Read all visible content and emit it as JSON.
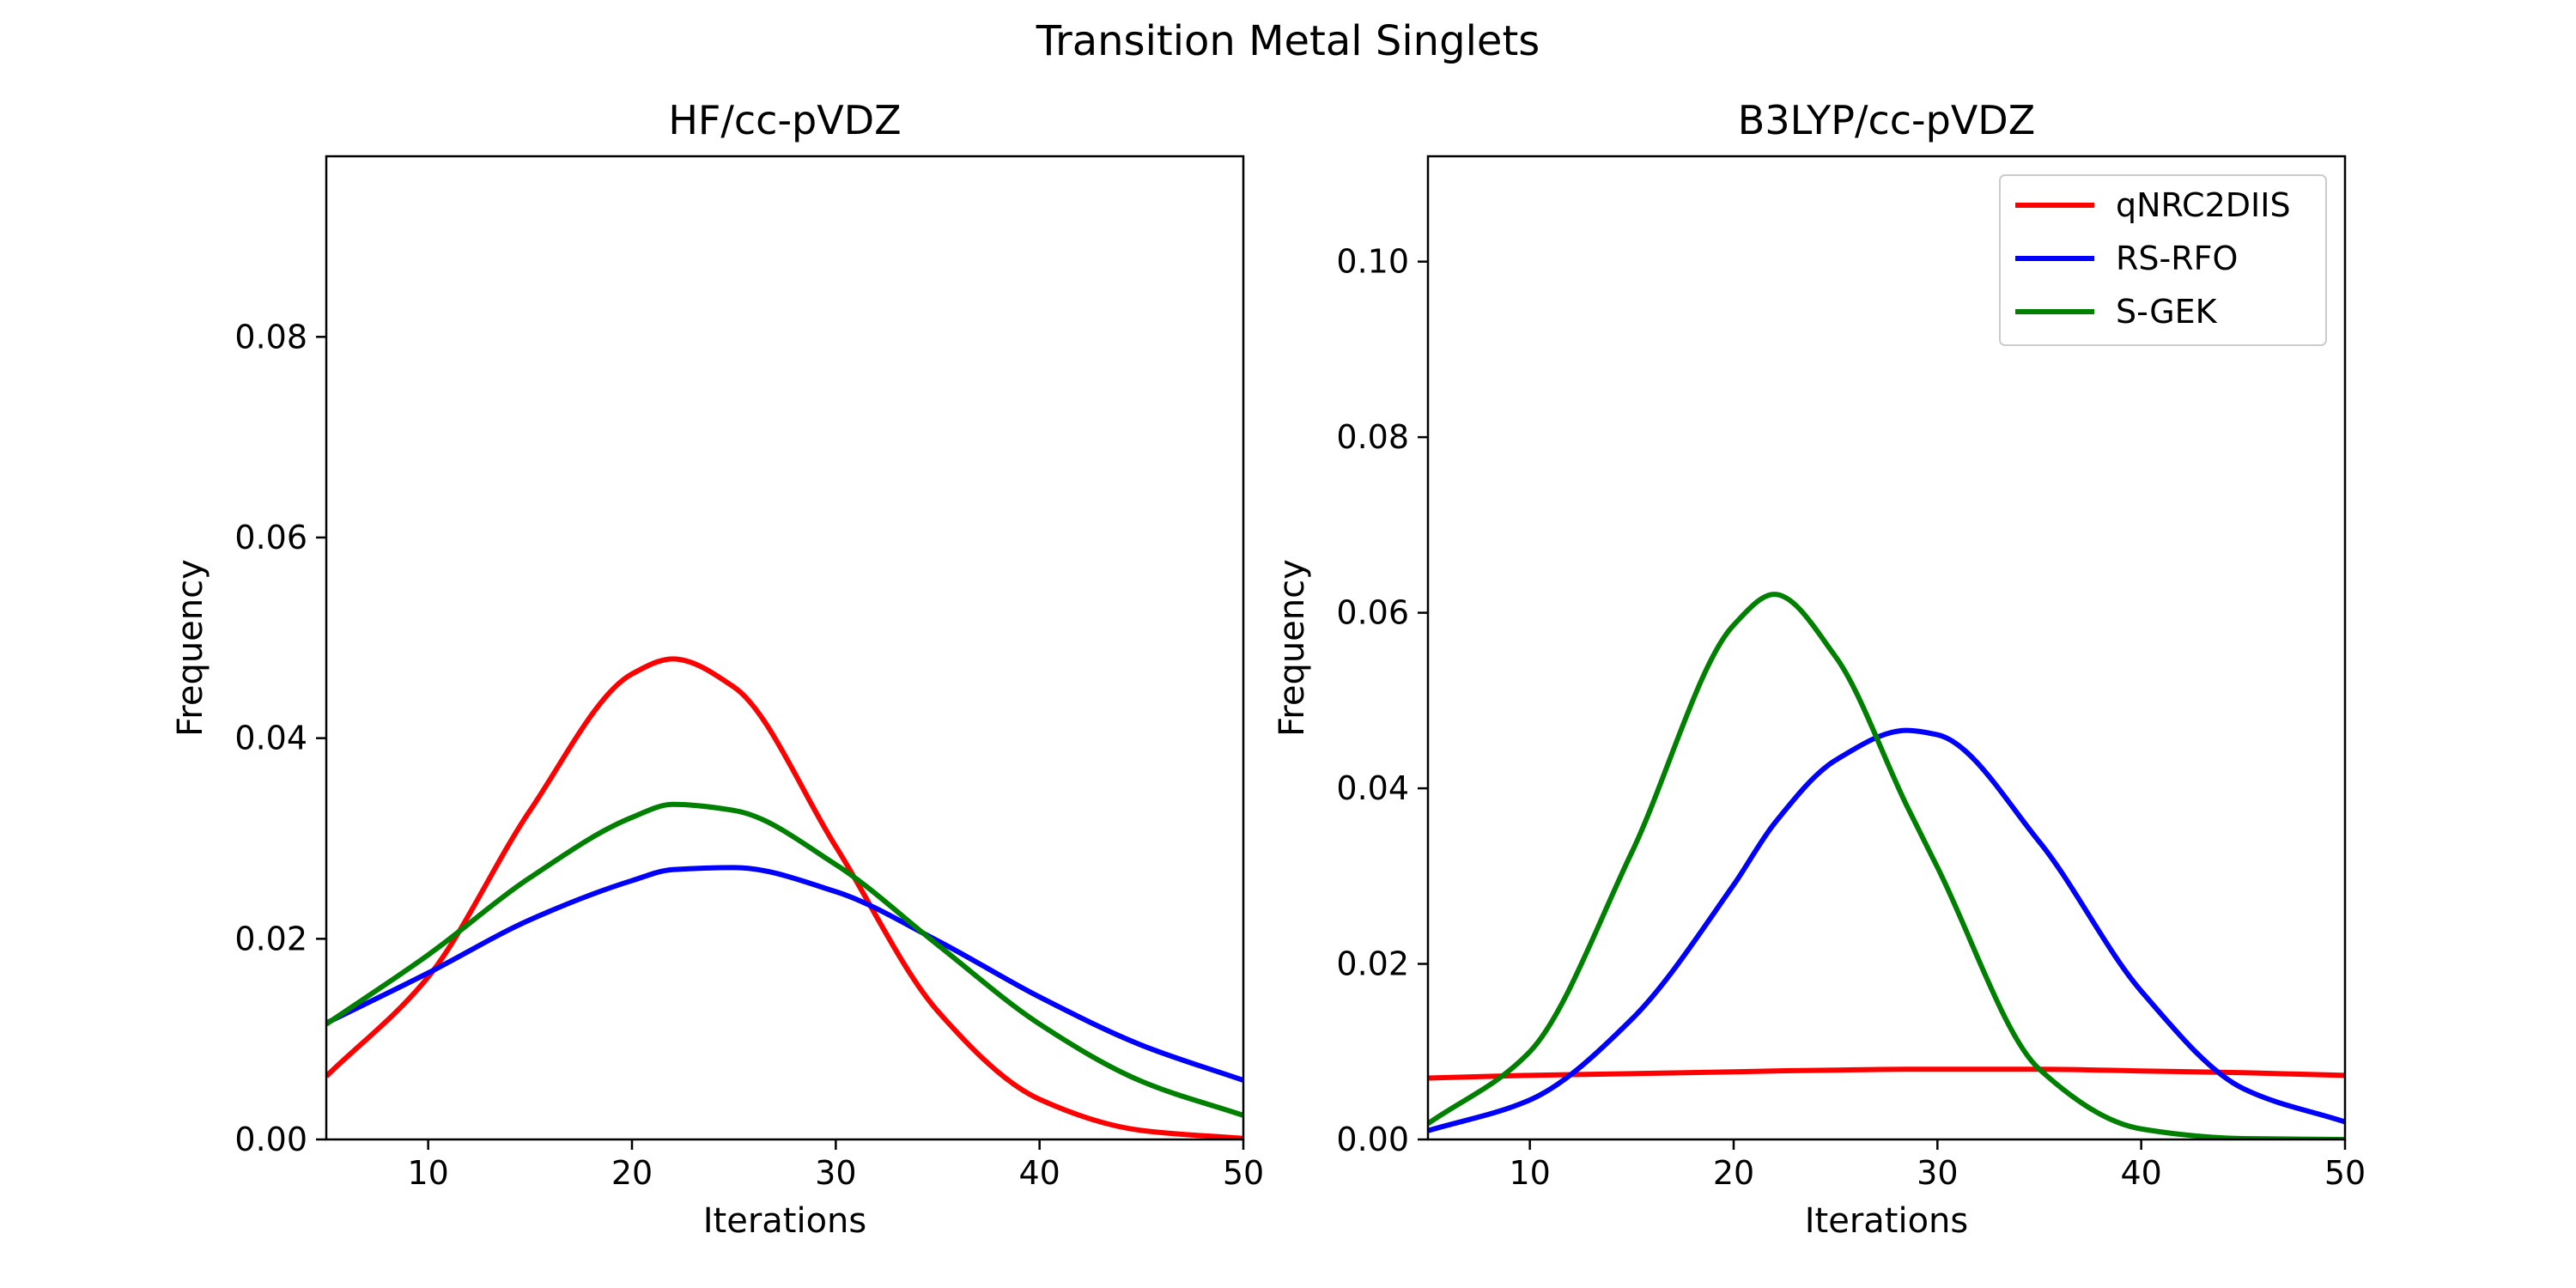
{
  "figure": {
    "title": "Transition Metal Singlets"
  },
  "colors": {
    "qNRC2DIIS": "#ff0000",
    "RS-RFO": "#0000ff",
    "S-GEK": "#008000"
  },
  "chart_data": [
    {
      "type": "line",
      "title": "HF/cc-pVDZ",
      "xlabel": "Iterations",
      "ylabel": "Frequency",
      "xlim": [
        5,
        50
      ],
      "ylim": [
        0,
        0.098
      ],
      "xticks": [
        10,
        20,
        30,
        40,
        50
      ],
      "yticks": [
        0.0,
        0.02,
        0.04,
        0.06,
        0.08
      ],
      "ytick_labels": [
        "0.00",
        "0.02",
        "0.04",
        "0.06",
        "0.08"
      ],
      "legend": false,
      "x": [
        5,
        10,
        15,
        20,
        22,
        25,
        30,
        35,
        40,
        45,
        50
      ],
      "series": [
        {
          "name": "qNRC2DIIS",
          "color": "#ff0000",
          "values": [
            0.0063,
            0.0162,
            0.0328,
            0.0464,
            0.0479,
            0.0451,
            0.0292,
            0.0128,
            0.004,
            0.0009,
            0.0001
          ]
        },
        {
          "name": "RS-RFO",
          "color": "#0000ff",
          "values": [
            0.0116,
            0.0166,
            0.0219,
            0.0258,
            0.0269,
            0.0271,
            0.0247,
            0.0198,
            0.0142,
            0.0094,
            0.0059
          ]
        },
        {
          "name": "S-GEK",
          "color": "#008000",
          "values": [
            0.0115,
            0.0184,
            0.0261,
            0.0321,
            0.0334,
            0.0328,
            0.0274,
            0.0194,
            0.0115,
            0.0058,
            0.0024
          ]
        }
      ]
    },
    {
      "type": "line",
      "title": "B3LYP/cc-pVDZ",
      "xlabel": "Iterations",
      "ylabel": "Frequency",
      "xlim": [
        5,
        50
      ],
      "ylim": [
        0,
        0.112
      ],
      "xticks": [
        10,
        20,
        30,
        40,
        50
      ],
      "yticks": [
        0.0,
        0.02,
        0.04,
        0.06,
        0.08,
        0.1
      ],
      "ytick_labels": [
        "0.00",
        "0.02",
        "0.04",
        "0.06",
        "0.08",
        "0.10"
      ],
      "legend": "top-right",
      "x": [
        5,
        10,
        15,
        20,
        22,
        25,
        28.5,
        30,
        35,
        40,
        45,
        50
      ],
      "series": [
        {
          "name": "qNRC2DIIS",
          "color": "#ff0000",
          "values": [
            0.007,
            0.0073,
            0.0075,
            0.0077,
            0.0078,
            0.0079,
            0.008,
            0.008,
            0.008,
            0.0078,
            0.0076,
            0.0073
          ]
        },
        {
          "name": "RS-RFO",
          "color": "#0000ff",
          "values": [
            0.001,
            0.0045,
            0.0137,
            0.029,
            0.036,
            0.0432,
            0.0466,
            0.0461,
            0.0339,
            0.0169,
            0.0058,
            0.002
          ]
        },
        {
          "name": "S-GEK",
          "color": "#008000",
          "values": [
            0.0018,
            0.01,
            0.0327,
            0.0586,
            0.0621,
            0.055,
            0.038,
            0.031,
            0.008,
            0.0012,
            0.0001,
            0.0
          ]
        }
      ]
    }
  ]
}
